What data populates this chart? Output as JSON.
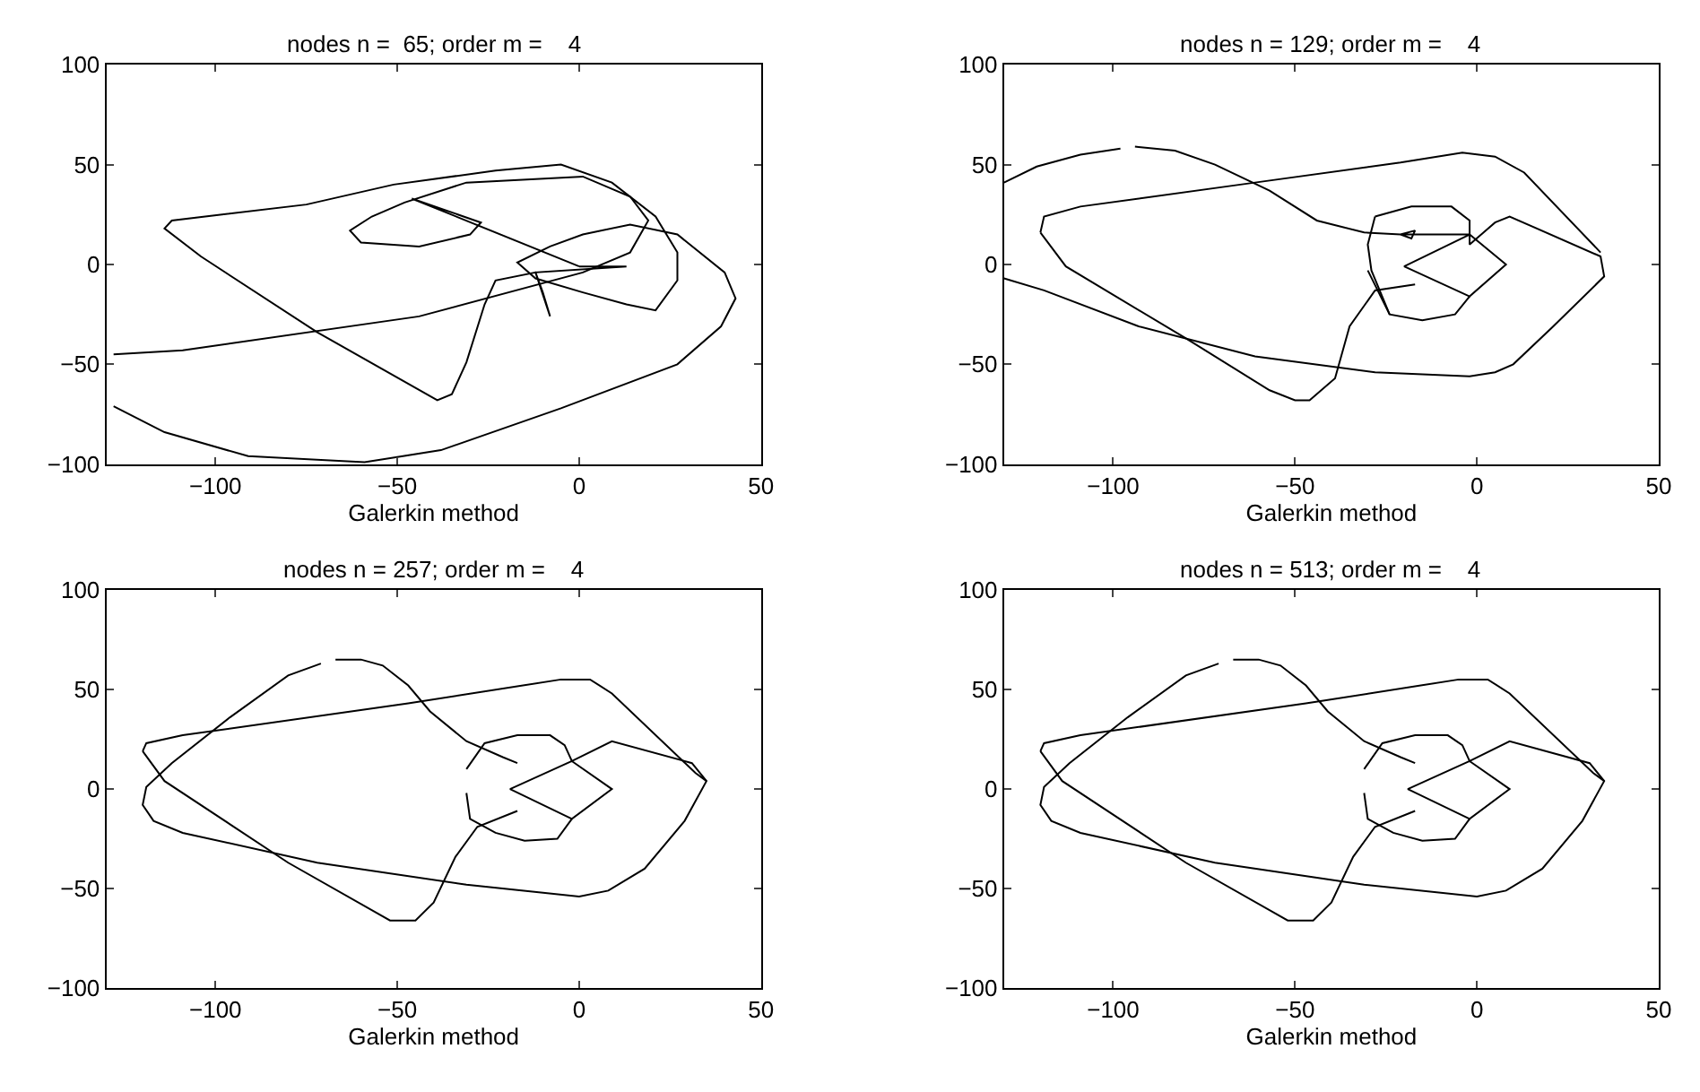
{
  "chart_data": [
    {
      "type": "line",
      "title": "nodes n =  65; order m =    4",
      "xlabel": "Galerkin method",
      "xlim": [
        -130,
        50
      ],
      "ylim": [
        -100,
        100
      ],
      "xticks": [
        -100,
        -50,
        0,
        50
      ],
      "yticks": [
        -100,
        -50,
        0,
        50,
        100
      ],
      "grid": false,
      "marker": "none",
      "line_style": "solid",
      "series": [
        {
          "color": "#000000",
          "x": [
            -128,
            -114,
            -91,
            -59,
            -38,
            -5,
            27,
            39,
            43,
            40,
            27,
            14,
            1,
            -8,
            -17,
            -12,
            1,
            13,
            21,
            27,
            27,
            21,
            9,
            -5,
            -23,
            -51,
            -75,
            -112,
            -114,
            -104,
            -72,
            -39,
            -35,
            -31,
            -26,
            -23,
            -12,
            -8,
            -10,
            -12,
            13,
            0,
            null,
            0,
            -46,
            -27,
            -30,
            -44,
            -60,
            -63,
            -57,
            -48,
            -31,
            1,
            14,
            19,
            14,
            1,
            -44,
            -109,
            -128
          ],
          "values": [
            -71,
            -84,
            -96,
            -99,
            -93,
            -72,
            -50,
            -31,
            -17,
            -4,
            15,
            20,
            15,
            9,
            1,
            -7,
            -14,
            -20,
            -23,
            -8,
            6,
            24,
            41,
            50,
            47,
            40,
            30,
            22,
            18,
            4,
            -34,
            -68,
            -65,
            -49,
            -20,
            -8,
            -4,
            -26,
            -14,
            -4,
            -1,
            -1,
            null,
            -1,
            33,
            21,
            15,
            9,
            11,
            17,
            24,
            31,
            41,
            44,
            34,
            22,
            6,
            -4,
            -26,
            -43,
            -45
          ]
        }
      ]
    },
    {
      "type": "line",
      "title": "nodes n = 129; order m =    4",
      "xlabel": "Galerkin method",
      "xlim": [
        -130,
        50
      ],
      "ylim": [
        -100,
        100
      ],
      "xticks": [
        -100,
        -50,
        0,
        50
      ],
      "yticks": [
        -100,
        -50,
        0,
        50,
        100
      ],
      "grid": false,
      "marker": "none",
      "line_style": "solid",
      "series": [
        {
          "color": "#000000",
          "x": [
            -130,
            -121,
            -109,
            -98,
            null,
            -94,
            -83,
            -72,
            -57,
            -44,
            -31,
            -21,
            -17,
            -18,
            -21,
            -2,
            8,
            -2,
            -20,
            -2,
            null,
            -28,
            -18,
            -7,
            -2,
            -2,
            5,
            9,
            34,
            35,
            21,
            10,
            5,
            -2,
            -28,
            -61,
            -93,
            -119,
            -130,
            null,
            -120,
            -119,
            -109,
            -61,
            -21,
            -4,
            5,
            13,
            34,
            null,
            -120,
            -113,
            -80,
            -57,
            -50,
            -46,
            -39,
            -35,
            -28,
            -17,
            null,
            -30,
            -24,
            -15,
            -6,
            -2,
            null,
            -28,
            -30,
            -29,
            -24
          ],
          "values": [
            41,
            49,
            55,
            58,
            null,
            59,
            57,
            50,
            37,
            22,
            16,
            15,
            17,
            13,
            15,
            15,
            0,
            -16,
            -1,
            15,
            null,
            24,
            29,
            29,
            22,
            10,
            21,
            24,
            4,
            -6,
            -31,
            -50,
            -54,
            -56,
            -54,
            -46,
            -31,
            -13,
            -7,
            null,
            16,
            24,
            29,
            41,
            51,
            56,
            54,
            46,
            6,
            null,
            16,
            -1,
            -37,
            -63,
            -68,
            -68,
            -57,
            -31,
            -13,
            -10,
            null,
            -3,
            -25,
            -28,
            -25,
            -16,
            null,
            24,
            10,
            -3,
            -25
          ]
        }
      ]
    },
    {
      "type": "line",
      "title": "nodes n = 257; order m =    4",
      "xlabel": "Galerkin method",
      "xlim": [
        -130,
        50
      ],
      "ylim": [
        -100,
        100
      ],
      "xticks": [
        -100,
        -50,
        0,
        50
      ],
      "yticks": [
        -100,
        -50,
        0,
        50,
        100
      ],
      "grid": false,
      "marker": "none",
      "line_style": "solid",
      "series": [
        {
          "color": "#000000",
          "x": [
            -71,
            -80,
            -96,
            -112,
            -119,
            -120,
            -117,
            -109,
            -72,
            -31,
            0,
            8,
            18,
            29,
            35,
            31,
            9,
            -2,
            9,
            -2,
            -19,
            -2,
            null,
            -67,
            -60,
            -54,
            -47,
            -41,
            -31,
            -21,
            -17,
            null,
            -120,
            -119,
            -109,
            -47,
            -5,
            3,
            9,
            32,
            35,
            null,
            -120,
            -114,
            -80,
            -52,
            -45,
            -40,
            -34,
            -28,
            -17,
            null,
            -31,
            -26,
            -17,
            -8,
            -4,
            -2,
            null,
            -31,
            -30,
            -23,
            -15,
            -6,
            -2
          ],
          "values": [
            63,
            57,
            36,
            13,
            1,
            -8,
            -16,
            -22,
            -37,
            -48,
            -54,
            -51,
            -40,
            -16,
            4,
            13,
            24,
            14,
            0,
            -15,
            0,
            14,
            null,
            65,
            65,
            62,
            52,
            39,
            24,
            16,
            13,
            null,
            19,
            23,
            27,
            43,
            55,
            55,
            48,
            8,
            4,
            null,
            19,
            4,
            -37,
            -66,
            -66,
            -57,
            -34,
            -19,
            -11,
            null,
            10,
            23,
            27,
            27,
            22,
            14,
            null,
            -2,
            -15,
            -22,
            -26,
            -25,
            -15
          ]
        }
      ]
    },
    {
      "type": "line",
      "title": "nodes n = 513; order m =    4",
      "xlabel": "Galerkin method",
      "xlim": [
        -130,
        50
      ],
      "ylim": [
        -100,
        100
      ],
      "xticks": [
        -100,
        -50,
        0,
        50
      ],
      "yticks": [
        -100,
        -50,
        0,
        50,
        100
      ],
      "grid": false,
      "marker": "none",
      "line_style": "solid",
      "series": [
        {
          "color": "#000000",
          "x": [
            -71,
            -80,
            -96,
            -112,
            -119,
            -120,
            -117,
            -109,
            -72,
            -31,
            0,
            8,
            18,
            29,
            35,
            31,
            9,
            -2,
            9,
            -2,
            -19,
            -2,
            null,
            -67,
            -60,
            -54,
            -47,
            -41,
            -31,
            -21,
            -17,
            null,
            -120,
            -119,
            -109,
            -47,
            -5,
            3,
            9,
            32,
            35,
            null,
            -120,
            -114,
            -80,
            -52,
            -45,
            -40,
            -34,
            -28,
            -17,
            null,
            -31,
            -26,
            -17,
            -8,
            -4,
            -2,
            null,
            -31,
            -30,
            -23,
            -15,
            -6,
            -2
          ],
          "values": [
            63,
            57,
            36,
            13,
            1,
            -8,
            -16,
            -22,
            -37,
            -48,
            -54,
            -51,
            -40,
            -16,
            4,
            13,
            24,
            14,
            0,
            -15,
            0,
            14,
            null,
            65,
            65,
            62,
            52,
            39,
            24,
            16,
            13,
            null,
            19,
            23,
            27,
            43,
            55,
            55,
            48,
            8,
            4,
            null,
            19,
            4,
            -37,
            -66,
            -66,
            -57,
            -34,
            -19,
            -11,
            null,
            10,
            23,
            27,
            27,
            22,
            14,
            null,
            -2,
            -15,
            -22,
            -26,
            -25,
            -15
          ]
        }
      ]
    }
  ]
}
